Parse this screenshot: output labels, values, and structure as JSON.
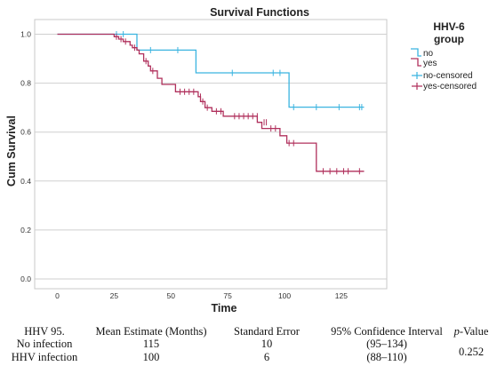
{
  "chart_data": {
    "type": "line",
    "title": "Survival Functions",
    "xlabel": "Time",
    "ylabel": "Cum Survival",
    "xlim": [
      -10,
      145
    ],
    "ylim": [
      -0.04,
      1.06
    ],
    "xticks": [
      "0",
      "25",
      "50",
      "75",
      "100",
      "125"
    ],
    "xtick_values": [
      0,
      25,
      50,
      75,
      100,
      125
    ],
    "yticks": [
      "0.0",
      "0.2",
      "0.4",
      "0.6",
      "0.8",
      "1.0"
    ],
    "ytick_values": [
      0.0,
      0.2,
      0.4,
      0.6,
      0.8,
      1.0
    ],
    "grid": "horizontal",
    "legend": {
      "title_line1": "HHV-6",
      "title_line2": "group",
      "placement": "top-right",
      "entries": [
        "no",
        "yes",
        "no-censored",
        "yes-censored"
      ]
    },
    "series": [
      {
        "name": "no",
        "color": "#3ab4e0",
        "steps": [
          [
            0,
            1.0
          ],
          [
            35,
            0.935
          ],
          [
            61,
            0.842
          ],
          [
            102,
            0.702
          ],
          [
            135,
            0.702
          ]
        ],
        "censored": [
          [
            26,
            1.0
          ],
          [
            29,
            1.0
          ],
          [
            41,
            0.935
          ],
          [
            53,
            0.935
          ],
          [
            77,
            0.842
          ],
          [
            95,
            0.842
          ],
          [
            98,
            0.842
          ],
          [
            104,
            0.702
          ],
          [
            114,
            0.702
          ],
          [
            124,
            0.702
          ],
          [
            133,
            0.702
          ],
          [
            134,
            0.702
          ]
        ]
      },
      {
        "name": "yes",
        "color": "#b0305c",
        "steps": [
          [
            0,
            1.0
          ],
          [
            25,
            0.99
          ],
          [
            27,
            0.98
          ],
          [
            29,
            0.97
          ],
          [
            32,
            0.955
          ],
          [
            33,
            0.945
          ],
          [
            35,
            0.935
          ],
          [
            36,
            0.92
          ],
          [
            38,
            0.89
          ],
          [
            40,
            0.87
          ],
          [
            41,
            0.85
          ],
          [
            44,
            0.82
          ],
          [
            46,
            0.795
          ],
          [
            52,
            0.765
          ],
          [
            62,
            0.745
          ],
          [
            63,
            0.725
          ],
          [
            65,
            0.7
          ],
          [
            68,
            0.685
          ],
          [
            73,
            0.665
          ],
          [
            88,
            0.64
          ],
          [
            90,
            0.615
          ],
          [
            98,
            0.585
          ],
          [
            101,
            0.555
          ],
          [
            114,
            0.44
          ],
          [
            135,
            0.44
          ]
        ],
        "censored": [
          [
            26,
            0.99
          ],
          [
            28,
            0.98
          ],
          [
            30,
            0.97
          ],
          [
            34,
            0.945
          ],
          [
            39,
            0.89
          ],
          [
            42,
            0.85
          ],
          [
            54,
            0.765
          ],
          [
            56,
            0.765
          ],
          [
            58,
            0.765
          ],
          [
            60,
            0.765
          ],
          [
            63,
            0.745
          ],
          [
            64,
            0.725
          ],
          [
            66,
            0.7
          ],
          [
            70,
            0.685
          ],
          [
            72,
            0.685
          ],
          [
            78,
            0.665
          ],
          [
            80,
            0.665
          ],
          [
            82,
            0.665
          ],
          [
            84,
            0.665
          ],
          [
            86,
            0.665
          ],
          [
            88,
            0.665
          ],
          [
            91,
            0.64
          ],
          [
            92,
            0.64
          ],
          [
            94,
            0.615
          ],
          [
            96,
            0.615
          ],
          [
            102,
            0.555
          ],
          [
            104,
            0.555
          ],
          [
            117,
            0.44
          ],
          [
            120,
            0.44
          ],
          [
            123,
            0.44
          ],
          [
            126,
            0.44
          ],
          [
            128,
            0.44
          ],
          [
            133,
            0.44
          ]
        ]
      }
    ]
  },
  "table": {
    "header": [
      "HHV 95.",
      "Mean Estimate (Months)",
      "Standard Error",
      "95% Confidence Interval",
      "-Value"
    ],
    "p_letter": "p",
    "rows": [
      [
        "No infection",
        "115",
        "10",
        "(95–134)"
      ],
      [
        "HHV infection",
        "100",
        "6",
        "(88–110)"
      ]
    ],
    "p_value": "0.252"
  }
}
